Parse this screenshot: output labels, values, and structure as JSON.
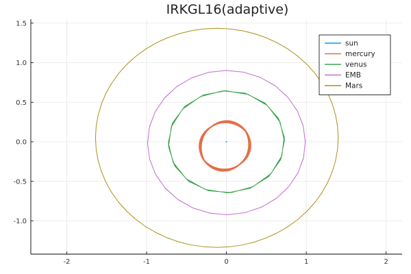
{
  "chart_data": {
    "type": "line",
    "title": "IRKGL16(adaptive)",
    "xlabel": "",
    "ylabel": "",
    "xlim": [
      -2.45,
      2.2
    ],
    "ylim": [
      -1.42,
      1.55
    ],
    "x_ticks": [
      -2,
      -1,
      0,
      1,
      2
    ],
    "x_tick_labels": [
      "-2",
      "-1",
      "0",
      "1",
      "2"
    ],
    "y_ticks": [
      -1.0,
      -0.5,
      0.0,
      0.5,
      1.0,
      1.5
    ],
    "y_tick_labels": [
      "-1.0",
      "-0.5",
      "0.0",
      "0.5",
      "1.0",
      "1.5"
    ],
    "grid": true,
    "legend_position": "top-right",
    "series": [
      {
        "name": "sun",
        "color": "#009AFA",
        "orbit": {
          "cx": 0.0,
          "cy": 0.0,
          "rx": 0.004,
          "ry": 0.004,
          "turns": 1,
          "precession_deg": 0,
          "samples": 12
        }
      },
      {
        "name": "mercury",
        "color": "#E36F47",
        "orbit": {
          "cx": -0.018,
          "cy": -0.052,
          "rx": 0.325,
          "ry": 0.292,
          "turns": 18,
          "precession_deg": 4,
          "samples": 44
        }
      },
      {
        "name": "venus",
        "color": "#3EA44E",
        "orbit": {
          "cx": 0.0,
          "cy": 0.0,
          "rx": 0.728,
          "ry": 0.645,
          "turns": 3,
          "precession_deg": 2,
          "samples": 16
        }
      },
      {
        "name": "EMB",
        "color": "#C371D2",
        "orbit": {
          "cx": 0.0,
          "cy": -0.01,
          "rx": 0.988,
          "ry": 0.912,
          "turns": 2,
          "precession_deg": 0.5,
          "samples": 28
        }
      },
      {
        "name": "Mars",
        "color": "#AC8D18",
        "orbit": {
          "cx": -0.12,
          "cy": 0.05,
          "rx": 1.52,
          "ry": 1.385,
          "turns": 1,
          "precession_deg": 0,
          "samples": 60
        }
      }
    ]
  }
}
